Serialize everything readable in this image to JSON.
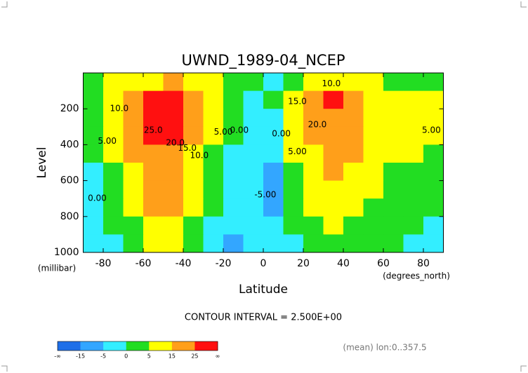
{
  "chart_data": {
    "type": "contour",
    "title": "UWND_1989-04_NCEP",
    "y_label": "Level",
    "y_unit": "(millibar)",
    "x_label": "Latitude",
    "x_unit": "(degrees_north)",
    "subtitle": "CONTOUR INTERVAL = 2.500E+00",
    "footnote": "(mean) lon:0..357.5",
    "xlim": [
      -90,
      90
    ],
    "xticks": [
      -80,
      -60,
      -40,
      -20,
      0,
      20,
      40,
      60,
      80
    ],
    "ylim": [
      1000,
      0
    ],
    "yticks": [
      200,
      400,
      600,
      800,
      1000
    ],
    "x": [
      -85,
      -75,
      -65,
      -55,
      -45,
      -35,
      -25,
      -15,
      -5,
      5,
      15,
      25,
      35,
      45,
      55,
      65,
      75,
      85
    ],
    "y": [
      50,
      150,
      250,
      350,
      450,
      550,
      650,
      750,
      850,
      950
    ],
    "z": [
      [
        3,
        5,
        10,
        14,
        16,
        12,
        6,
        2,
        0,
        -2,
        4,
        10,
        12,
        10,
        6,
        4,
        3,
        2
      ],
      [
        3,
        7,
        16,
        26,
        27,
        18,
        9,
        2,
        -2,
        1,
        12,
        24,
        27,
        19,
        10,
        5,
        6,
        6
      ],
      [
        2,
        7,
        17,
        27,
        28,
        19,
        8,
        1,
        -2,
        -1,
        10,
        22,
        23,
        19,
        11,
        6,
        7,
        7
      ],
      [
        1,
        6,
        17,
        25,
        27,
        17,
        6,
        0,
        -3,
        -2,
        7,
        18,
        20,
        17,
        11,
        6,
        6,
        6
      ],
      [
        0,
        5,
        15,
        20,
        20,
        13,
        4,
        -1,
        -3,
        -4,
        5,
        14,
        17,
        15,
        10,
        5,
        5,
        4
      ],
      [
        -1,
        3,
        12,
        18,
        17,
        10,
        2,
        -1,
        -3,
        -6,
        3,
        11,
        15,
        13,
        8,
        4,
        3,
        2
      ],
      [
        -1,
        2,
        10,
        17,
        16,
        8,
        1,
        -2,
        -3,
        -6,
        2,
        8,
        12,
        11,
        6,
        3,
        2,
        1
      ],
      [
        -2,
        1,
        7,
        16,
        15,
        6,
        0,
        -2,
        -3,
        -7,
        1,
        6,
        10,
        7,
        4,
        2,
        1,
        0
      ],
      [
        -2,
        0,
        4,
        12,
        13,
        3,
        -2,
        -5,
        -3,
        -5,
        0,
        4,
        6,
        3,
        2,
        1,
        0,
        -1
      ],
      [
        -2,
        -1,
        1,
        7,
        8,
        1,
        -2,
        -6,
        -3,
        -2,
        -1,
        2,
        3,
        2,
        1,
        0,
        -1,
        -1
      ]
    ],
    "colorbar": {
      "levels": [
        -15,
        -5,
        0,
        5,
        15,
        25
      ],
      "end_labels": [
        "-∞",
        "∞"
      ],
      "colors": [
        "#1f6fe8",
        "#33a6ff",
        "#33eeff",
        "#22dd22",
        "#ffff00",
        "#ff9f1a",
        "#ff1010"
      ]
    },
    "contour_labels": [
      {
        "text": "10.0",
        "lat": -72,
        "level": 200
      },
      {
        "text": "5.00",
        "lat": -78,
        "level": 380
      },
      {
        "text": "0.00",
        "lat": -83,
        "level": 700
      },
      {
        "text": "25.0",
        "lat": -55,
        "level": 320
      },
      {
        "text": "20.0",
        "lat": -44,
        "level": 390
      },
      {
        "text": "15.0",
        "lat": -38,
        "level": 420
      },
      {
        "text": "10.0",
        "lat": -32,
        "level": 460
      },
      {
        "text": "5.00",
        "lat": -20,
        "level": 330
      },
      {
        "text": "0.00",
        "lat": -12,
        "level": 320
      },
      {
        "text": "10.0",
        "lat": 34,
        "level": 60
      },
      {
        "text": "15.0",
        "lat": 17,
        "level": 160
      },
      {
        "text": "20.0",
        "lat": 27,
        "level": 290
      },
      {
        "text": "0.00",
        "lat": 9,
        "level": 340
      },
      {
        "text": "5.00",
        "lat": 17,
        "level": 440
      },
      {
        "text": "-5.00",
        "lat": 1,
        "level": 680
      },
      {
        "text": "5.00",
        "lat": 84,
        "level": 320
      }
    ]
  }
}
